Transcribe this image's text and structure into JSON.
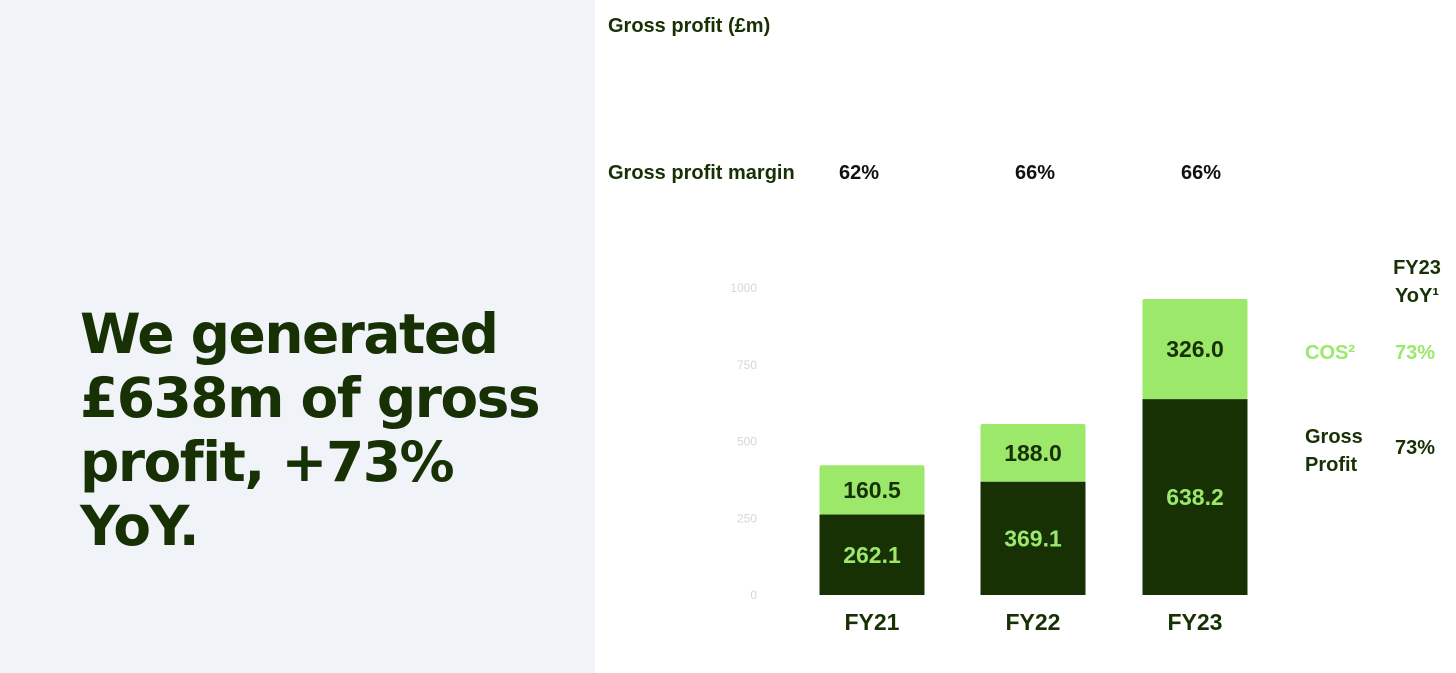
{
  "headline": {
    "line1": "We generated",
    "line2": "£638m of gross",
    "line3": "profit, +73% YoY."
  },
  "chart_title": "Gross profit (£m)",
  "margin": {
    "label": "Gross profit margin",
    "values": [
      "62%",
      "66%",
      "66%"
    ]
  },
  "chart_data": {
    "type": "bar",
    "stacked": true,
    "title": "Gross profit (£m)",
    "categories": [
      "FY21",
      "FY22",
      "FY23"
    ],
    "series": [
      {
        "name": "Gross Profit",
        "values": [
          262.1,
          369.1,
          638.2
        ],
        "color": "#173105",
        "label_color": "#9be86b"
      },
      {
        "name": "COS²",
        "values": [
          160.5,
          188.0,
          326.0
        ],
        "color": "#9be86b",
        "label_color": "#173105"
      }
    ],
    "ylim": [
      0,
      1000
    ],
    "yticks": [
      0,
      250,
      500,
      750,
      1000
    ],
    "ytick_labels": [
      "0",
      "250",
      "500",
      "750",
      "1000"
    ],
    "ytick_color": "#d6d6d6",
    "grid": false
  },
  "side_legend": {
    "header_line1": "FY23",
    "header_line2": "YoY¹",
    "cos_label": "COS²",
    "cos_value": "73%",
    "gp_line1": "Gross",
    "gp_line2": "Profit",
    "gp_value": "73%",
    "cos_color": "#9be86b",
    "gp_color": "#173105"
  }
}
